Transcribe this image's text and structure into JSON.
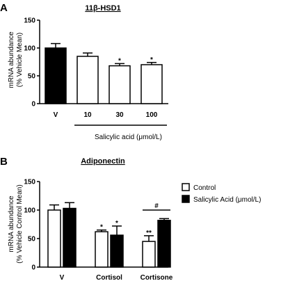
{
  "chart_data": [
    {
      "panel": "A",
      "type": "bar",
      "title": "11β-HSD1",
      "ylabel": [
        "mRNA abundance",
        "(% Vehicle Mean)"
      ],
      "xlabel": "Salicylic acid  (μmol/L)",
      "ylim": [
        0,
        150
      ],
      "yticks": [
        "0",
        "50",
        "100",
        "150"
      ],
      "categories": [
        "V",
        "10",
        "30",
        "100"
      ],
      "values": [
        100,
        85,
        68,
        70
      ],
      "errors": [
        8,
        6,
        4,
        4
      ],
      "fills": [
        "#000000",
        "#ffffff",
        "#ffffff",
        "#ffffff"
      ],
      "annotations": [
        "",
        "",
        "*",
        "*"
      ]
    },
    {
      "panel": "B",
      "type": "bar",
      "title": "Adiponectin",
      "ylabel": [
        "mRNA abundance",
        "(% Vehicle Control Mean)"
      ],
      "ylim": [
        0,
        150
      ],
      "yticks": [
        "0",
        "50",
        "100",
        "150"
      ],
      "categories": [
        "V",
        "Cortisol",
        "Cortisone"
      ],
      "series": [
        {
          "name": "Control",
          "fill": "#ffffff",
          "values": [
            100,
            62,
            45
          ],
          "errors": [
            9,
            3,
            10
          ],
          "annotations": [
            "",
            "*",
            "**"
          ]
        },
        {
          "name": "Salicylic Acid (μmol/L)",
          "fill": "#000000",
          "values": [
            103,
            56,
            82
          ],
          "errors": [
            10,
            16,
            3
          ],
          "annotations": [
            "",
            "*",
            ""
          ]
        }
      ],
      "comparison": {
        "label": "#",
        "category": "Cortisone"
      },
      "legend_position": "right"
    }
  ]
}
